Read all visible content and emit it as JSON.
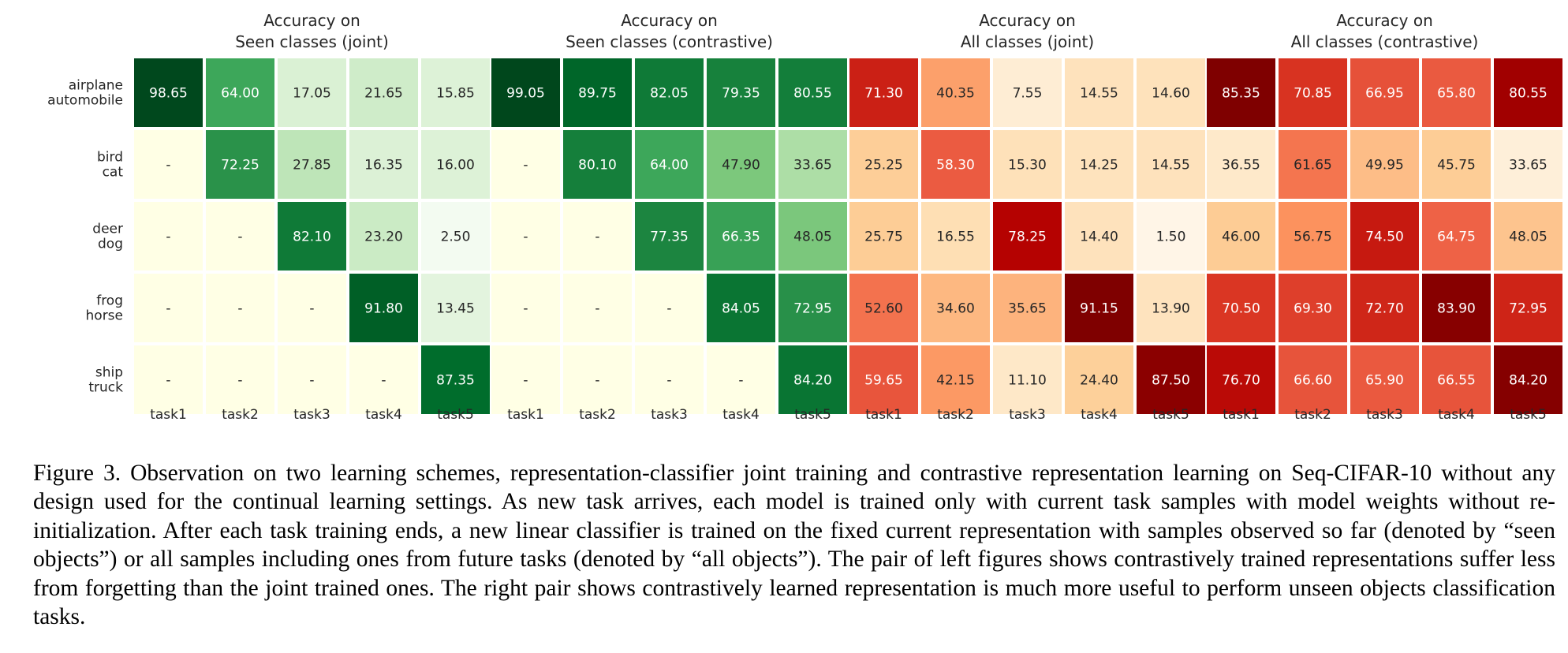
{
  "chart_data": {
    "type": "heatmap",
    "row_labels": [
      [
        "airplane",
        "automobile"
      ],
      [
        "bird",
        "cat"
      ],
      [
        "deer",
        "dog"
      ],
      [
        "frog",
        "horse"
      ],
      [
        "ship",
        "truck"
      ]
    ],
    "column_labels": [
      "task1",
      "task2",
      "task3",
      "task4",
      "task5"
    ],
    "panels": [
      {
        "title_line1": "Accuracy on",
        "title_line2": "Seen classes (joint)",
        "colormap": "Greens",
        "range": [
          0,
          100
        ],
        "values": [
          [
            "98.65",
            "64.00",
            "17.05",
            "21.65",
            "15.85"
          ],
          [
            "-",
            "72.25",
            "27.85",
            "16.35",
            "16.00"
          ],
          [
            "-",
            "-",
            "82.10",
            "23.20",
            "2.50"
          ],
          [
            "-",
            "-",
            "-",
            "91.80",
            "13.45"
          ],
          [
            "-",
            "-",
            "-",
            "-",
            "87.35"
          ]
        ]
      },
      {
        "title_line1": "Accuracy on",
        "title_line2": "Seen classes (contrastive)",
        "colormap": "Greens",
        "range": [
          0,
          100
        ],
        "values": [
          [
            "99.05",
            "89.75",
            "82.05",
            "79.35",
            "80.55"
          ],
          [
            "-",
            "80.10",
            "64.00",
            "47.90",
            "33.65"
          ],
          [
            "-",
            "-",
            "77.35",
            "66.35",
            "48.05"
          ],
          [
            "-",
            "-",
            "-",
            "84.05",
            "72.95"
          ],
          [
            "-",
            "-",
            "-",
            "-",
            "84.20"
          ]
        ]
      },
      {
        "title_line1": "Accuracy on",
        "title_line2": "All classes (joint)",
        "colormap": "OrRd",
        "range": [
          0,
          90
        ],
        "values": [
          [
            "71.30",
            "40.35",
            "7.55",
            "14.55",
            "14.60"
          ],
          [
            "25.25",
            "58.30",
            "15.30",
            "14.25",
            "14.55"
          ],
          [
            "25.75",
            "16.55",
            "78.25",
            "14.40",
            "1.50"
          ],
          [
            "52.60",
            "34.60",
            "35.65",
            "91.15",
            "13.90"
          ],
          [
            "59.65",
            "42.15",
            "11.10",
            "24.40",
            "87.50"
          ]
        ]
      },
      {
        "title_line1": "Accuracy on",
        "title_line2": "All classes (contrastive)",
        "colormap": "OrRd",
        "range": [
          30,
          85
        ],
        "values": [
          [
            "85.35",
            "70.85",
            "66.95",
            "65.80",
            "80.55"
          ],
          [
            "36.55",
            "61.65",
            "49.95",
            "45.75",
            "33.65"
          ],
          [
            "46.00",
            "56.75",
            "74.50",
            "64.75",
            "48.05"
          ],
          [
            "70.50",
            "69.30",
            "72.70",
            "83.90",
            "72.95"
          ],
          [
            "76.70",
            "66.60",
            "65.90",
            "66.55",
            "84.20"
          ]
        ]
      }
    ]
  },
  "caption": "Figure 3. Observation on two learning schemes, representation-classifier joint training and contrastive representation learning on Seq-CIFAR-10 without any design used for the continual learning settings. As new task arrives, each model is trained only with current task samples with model weights without re-initialization. After each task training ends, a new linear classifier is trained on the fixed current representation with samples observed so far (denoted by “seen objects”) or all samples including ones from future tasks (denoted by “all objects”). The pair of left figures shows contrastively trained representations suffer less from forgetting than the joint trained ones. The right pair shows contrastively learned representation is much more useful to perform unseen objects classification tasks."
}
